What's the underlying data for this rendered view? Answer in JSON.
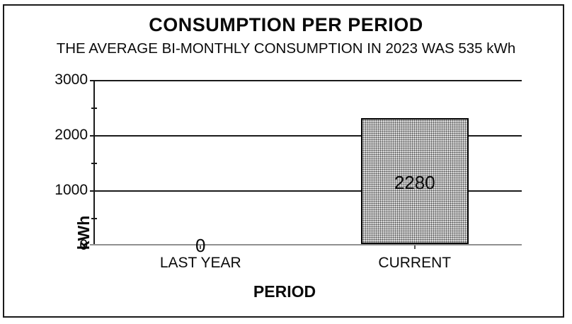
{
  "chart_data": {
    "type": "bar",
    "title": "CONSUMPTION PER PERIOD",
    "subtitle": "THE AVERAGE BI-MONTHLY CONSUMPTION IN 2023 WAS 535 kWh",
    "categories": [
      "LAST YEAR",
      "CURRENT"
    ],
    "values": [
      0,
      2280
    ],
    "data_labels": [
      "0",
      "2280"
    ],
    "xlabel": "PERIOD",
    "ylabel": "kWh",
    "ylim": [
      0,
      3000
    ],
    "yticks": [
      0,
      1000,
      2000,
      3000
    ],
    "ytick_labels": [
      "0",
      "1000",
      "2000",
      "3000"
    ],
    "minor_tick_step": 500,
    "grid": "horizontal-major-on",
    "legend": "none",
    "colors": {
      "bar_fill": "#d9d9d9",
      "bar_pattern_dot": "#4f4f4f",
      "bar_border": "#000000",
      "gridline": "#1a1a1a",
      "baseline": "#909090",
      "text": "#0a0a0a",
      "background": "#ffffff",
      "frame_border": "#1a1a1a"
    }
  }
}
